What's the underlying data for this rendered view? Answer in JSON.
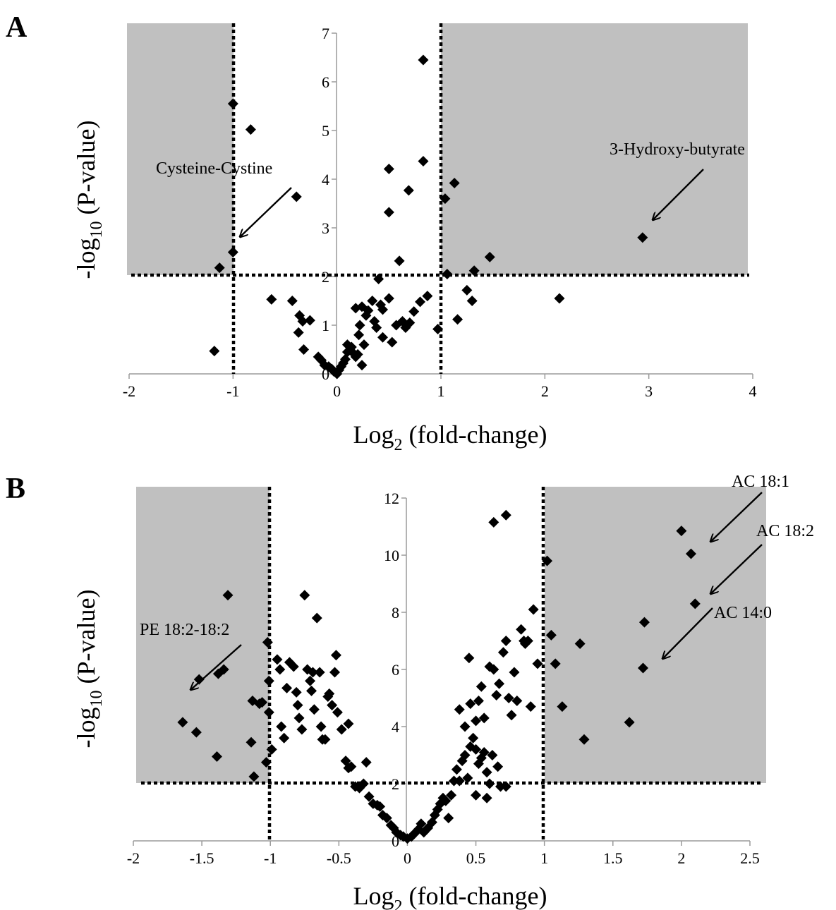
{
  "colors": {
    "background": "#ffffff",
    "shade": "#c0c0c0",
    "marker": "#000000",
    "threshold_line": "#000000",
    "axis": "#9a9a9a"
  },
  "chart_data": [
    {
      "panel_label": "A",
      "type": "scatter",
      "marker": "diamond",
      "xlabel": "Log2 (fold-change)",
      "ylabel": "-log10 (P-value)",
      "xlim": [
        -2,
        4
      ],
      "ylim": [
        0,
        7
      ],
      "x_tick_labels": [
        "-2",
        "-1",
        "0",
        "1",
        "2",
        "3",
        "4"
      ],
      "y_tick_labels": [
        "0",
        "1",
        "2",
        "3",
        "4",
        "5",
        "6",
        "7"
      ],
      "grid": false,
      "shaded_regions": [
        {
          "x": [
            -2,
            -1
          ],
          "y": [
            2,
            7
          ]
        },
        {
          "x": [
            1,
            4
          ],
          "y": [
            2,
            7
          ]
        }
      ],
      "thresholds": {
        "x": [
          -1,
          1
        ],
        "y": 2
      },
      "points": [
        [
          -1.0,
          5.55
        ],
        [
          -0.83,
          5.02
        ],
        [
          -0.39,
          3.64
        ],
        [
          -1.0,
          2.5
        ],
        [
          -1.13,
          2.18
        ],
        [
          -1.18,
          0.47
        ],
        [
          -0.63,
          1.53
        ],
        [
          -0.43,
          1.5
        ],
        [
          -0.36,
          1.2
        ],
        [
          -0.33,
          1.08
        ],
        [
          -0.26,
          1.1
        ],
        [
          -0.37,
          0.85
        ],
        [
          -0.32,
          0.5
        ],
        [
          -0.18,
          0.35
        ],
        [
          -0.15,
          0.28
        ],
        [
          -0.12,
          0.18
        ],
        [
          -0.08,
          0.15
        ],
        [
          -0.05,
          0.1
        ],
        [
          -0.03,
          0.05
        ],
        [
          0.0,
          0.0
        ],
        [
          0.02,
          0.08
        ],
        [
          0.04,
          0.15
        ],
        [
          0.06,
          0.22
        ],
        [
          0.08,
          0.3
        ],
        [
          0.1,
          0.45
        ],
        [
          0.1,
          0.6
        ],
        [
          0.14,
          0.55
        ],
        [
          0.16,
          0.42
        ],
        [
          0.18,
          0.35
        ],
        [
          0.2,
          0.4
        ],
        [
          0.21,
          0.8
        ],
        [
          0.22,
          1.0
        ],
        [
          0.24,
          1.38
        ],
        [
          0.26,
          0.6
        ],
        [
          0.24,
          0.18
        ],
        [
          0.18,
          1.35
        ],
        [
          0.28,
          1.2
        ],
        [
          0.3,
          1.3
        ],
        [
          0.34,
          1.5
        ],
        [
          0.36,
          1.08
        ],
        [
          0.38,
          0.95
        ],
        [
          0.4,
          1.95
        ],
        [
          0.42,
          1.42
        ],
        [
          0.44,
          1.32
        ],
        [
          0.44,
          0.75
        ],
        [
          0.5,
          1.55
        ],
        [
          0.53,
          0.65
        ],
        [
          0.57,
          1.0
        ],
        [
          0.63,
          1.08
        ],
        [
          0.66,
          0.95
        ],
        [
          0.7,
          1.05
        ],
        [
          0.74,
          1.28
        ],
        [
          0.8,
          1.48
        ],
        [
          0.87,
          1.6
        ],
        [
          0.5,
          4.21
        ],
        [
          0.5,
          3.32
        ],
        [
          0.6,
          2.32
        ],
        [
          0.69,
          3.77
        ],
        [
          0.83,
          4.37
        ],
        [
          0.83,
          6.45
        ],
        [
          0.97,
          0.92
        ],
        [
          1.04,
          3.6
        ],
        [
          1.13,
          3.92
        ],
        [
          1.06,
          2.05
        ],
        [
          1.16,
          1.12
        ],
        [
          1.25,
          1.72
        ],
        [
          1.3,
          1.5
        ],
        [
          1.32,
          2.12
        ],
        [
          1.47,
          2.4
        ],
        [
          2.14,
          1.55
        ],
        [
          2.94,
          2.8
        ]
      ],
      "annotations": [
        "Cysteine-Cystine",
        "3-Hydroxy-butyrate"
      ]
    },
    {
      "panel_label": "B",
      "type": "scatter",
      "marker": "diamond",
      "xlabel": "Log2 (fold-change)",
      "ylabel": "-log10 (P-value)",
      "xlim": [
        -2,
        2.5
      ],
      "ylim": [
        0,
        12
      ],
      "x_tick_labels": [
        "-2",
        "-1.5",
        "-1",
        "-0.5",
        "0",
        "0.5",
        "1",
        "1.5",
        "2",
        "2.5"
      ],
      "y_tick_labels": [
        "0",
        "2",
        "4",
        "6",
        "8",
        "10",
        "12"
      ],
      "grid": false,
      "shaded_regions": [
        {
          "x": [
            -1.98,
            -1
          ],
          "y": [
            2,
            12.3
          ]
        },
        {
          "x": [
            1,
            2.59
          ],
          "y": [
            2,
            12.3
          ]
        }
      ],
      "thresholds": {
        "x": [
          -1,
          1
        ],
        "y": 2
      },
      "points": [
        [
          -1.64,
          4.15
        ],
        [
          -1.54,
          3.8
        ],
        [
          -1.39,
          2.95
        ],
        [
          -1.52,
          5.65
        ],
        [
          -1.38,
          5.85
        ],
        [
          -1.34,
          6.0
        ],
        [
          -1.31,
          8.6
        ],
        [
          -1.14,
          3.45
        ],
        [
          -1.13,
          4.9
        ],
        [
          -1.08,
          4.8
        ],
        [
          -1.06,
          4.85
        ],
        [
          -1.02,
          6.95
        ],
        [
          -1.12,
          2.25
        ],
        [
          -1.03,
          2.75
        ],
        [
          -1.01,
          5.6
        ],
        [
          -1.01,
          4.5
        ],
        [
          -0.95,
          6.35
        ],
        [
          -0.99,
          3.2
        ],
        [
          -0.93,
          6.0
        ],
        [
          -0.92,
          4.0
        ],
        [
          -0.9,
          3.6
        ],
        [
          -0.88,
          5.35
        ],
        [
          -0.86,
          6.25
        ],
        [
          -0.83,
          6.1
        ],
        [
          -0.81,
          5.2
        ],
        [
          -0.8,
          4.75
        ],
        [
          -0.79,
          4.3
        ],
        [
          -0.77,
          3.9
        ],
        [
          -0.75,
          8.6
        ],
        [
          -0.73,
          6.0
        ],
        [
          -0.71,
          5.6
        ],
        [
          -0.7,
          5.25
        ],
        [
          -0.69,
          5.9
        ],
        [
          -0.68,
          4.6
        ],
        [
          -0.66,
          7.8
        ],
        [
          -0.64,
          5.9
        ],
        [
          -0.63,
          4.0
        ],
        [
          -0.62,
          3.55
        ],
        [
          -0.6,
          3.55
        ],
        [
          -0.58,
          5.05
        ],
        [
          -0.57,
          5.15
        ],
        [
          -0.55,
          4.75
        ],
        [
          -0.53,
          5.9
        ],
        [
          -0.52,
          6.5
        ],
        [
          -0.51,
          4.5
        ],
        [
          -0.48,
          3.9
        ],
        [
          -0.43,
          4.1
        ],
        [
          -0.45,
          2.8
        ],
        [
          -0.43,
          2.55
        ],
        [
          -0.41,
          2.6
        ],
        [
          -0.38,
          1.9
        ],
        [
          -0.35,
          1.85
        ],
        [
          -0.3,
          2.75
        ],
        [
          -0.32,
          2.0
        ],
        [
          -0.28,
          1.55
        ],
        [
          -0.25,
          1.3
        ],
        [
          -0.22,
          1.25
        ],
        [
          -0.2,
          1.2
        ],
        [
          -0.18,
          0.9
        ],
        [
          -0.15,
          0.8
        ],
        [
          -0.12,
          0.55
        ],
        [
          -0.1,
          0.45
        ],
        [
          -0.08,
          0.3
        ],
        [
          -0.05,
          0.2
        ],
        [
          -0.03,
          0.15
        ],
        [
          0.0,
          0.08
        ],
        [
          0.03,
          0.15
        ],
        [
          0.05,
          0.25
        ],
        [
          0.08,
          0.4
        ],
        [
          0.1,
          0.6
        ],
        [
          0.12,
          0.3
        ],
        [
          0.15,
          0.45
        ],
        [
          0.18,
          0.65
        ],
        [
          0.2,
          0.9
        ],
        [
          0.22,
          1.1
        ],
        [
          0.24,
          1.3
        ],
        [
          0.26,
          1.5
        ],
        [
          0.28,
          1.4
        ],
        [
          0.3,
          0.8
        ],
        [
          0.32,
          1.6
        ],
        [
          0.34,
          2.1
        ],
        [
          0.36,
          2.5
        ],
        [
          0.38,
          2.1
        ],
        [
          0.4,
          2.8
        ],
        [
          0.42,
          3.0
        ],
        [
          0.44,
          2.2
        ],
        [
          0.46,
          3.3
        ],
        [
          0.48,
          3.6
        ],
        [
          0.5,
          3.2
        ],
        [
          0.52,
          2.7
        ],
        [
          0.54,
          2.9
        ],
        [
          0.56,
          3.1
        ],
        [
          0.58,
          2.4
        ],
        [
          0.6,
          2.0
        ],
        [
          0.62,
          3.0
        ],
        [
          0.38,
          4.6
        ],
        [
          0.42,
          4.0
        ],
        [
          0.46,
          4.8
        ],
        [
          0.5,
          4.2
        ],
        [
          0.52,
          4.9
        ],
        [
          0.54,
          5.4
        ],
        [
          0.56,
          4.3
        ],
        [
          0.6,
          6.1
        ],
        [
          0.63,
          6.0
        ],
        [
          0.65,
          5.1
        ],
        [
          0.67,
          5.5
        ],
        [
          0.7,
          6.6
        ],
        [
          0.72,
          7.0
        ],
        [
          0.74,
          5.0
        ],
        [
          0.76,
          4.4
        ],
        [
          0.78,
          5.9
        ],
        [
          0.8,
          4.9
        ],
        [
          0.83,
          7.4
        ],
        [
          0.86,
          6.9
        ],
        [
          0.88,
          7.0
        ],
        [
          0.9,
          4.7
        ],
        [
          0.92,
          8.1
        ],
        [
          0.95,
          6.2
        ],
        [
          0.45,
          6.4
        ],
        [
          0.5,
          1.6
        ],
        [
          0.58,
          1.5
        ],
        [
          0.66,
          2.6
        ],
        [
          0.68,
          1.9
        ],
        [
          0.72,
          1.9
        ],
        [
          0.63,
          11.15
        ],
        [
          0.72,
          11.4
        ],
        [
          1.02,
          9.8
        ],
        [
          1.05,
          7.2
        ],
        [
          1.08,
          6.2
        ],
        [
          1.13,
          4.7
        ],
        [
          1.26,
          6.9
        ],
        [
          1.29,
          3.55
        ],
        [
          1.62,
          4.15
        ],
        [
          1.72,
          6.05
        ],
        [
          1.73,
          7.65
        ],
        [
          2.0,
          10.85
        ],
        [
          2.07,
          10.05
        ],
        [
          2.1,
          8.3
        ],
        [
          0.85,
          7.0
        ]
      ],
      "annotations": [
        "AC 18:1",
        "AC 18:2",
        "AC 14:0",
        "PE 18:2-18:2"
      ]
    }
  ]
}
